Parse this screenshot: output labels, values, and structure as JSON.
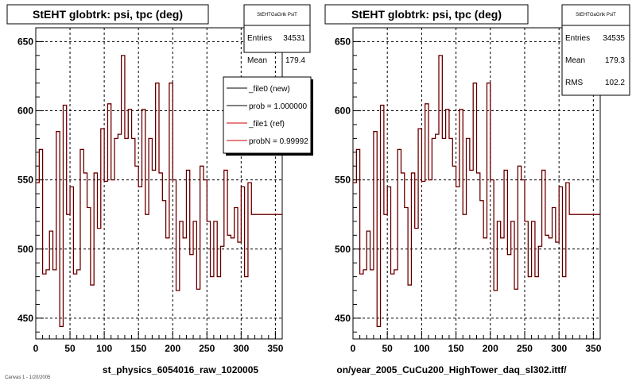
{
  "chart_data": [
    {
      "type": "line",
      "title": "StEHT globtrk: psi, tpc (deg)",
      "footer": "st_physics_6054016_raw_1020005",
      "xlim": [
        0,
        360
      ],
      "ylim": [
        435,
        660
      ],
      "x_ticks": [
        "0",
        "50",
        "100",
        "150",
        "200",
        "250",
        "300",
        "350"
      ],
      "y_ticks": [
        "450",
        "500",
        "550",
        "600",
        "650"
      ],
      "grid": true,
      "stats": {
        "name": "StEHTGaGrtk PsiT",
        "rows": [
          {
            "label": "Entries",
            "value": "34531"
          },
          {
            "label": "Mean",
            "value": "179.4"
          }
        ]
      },
      "legend": [
        {
          "label": "_file0 (new)",
          "color": "#000000"
        },
        {
          "label": "prob = 1.000000",
          "color": "#000000"
        },
        {
          "label": "_file1 (ref)",
          "color": "#cc0000"
        },
        {
          "label": "probN = 0.99992",
          "color": "#cc0000"
        }
      ],
      "series": [
        {
          "color": "#cc0000",
          "bin_width": 5,
          "values": [
            548,
            572,
            482,
            485,
            513,
            485,
            585,
            444,
            604,
            525,
            545,
            482,
            485,
            572,
            555,
            530,
            474,
            555,
            515,
            587,
            549,
            605,
            550,
            580,
            583,
            640,
            580,
            601,
            580,
            560,
            545,
            601,
            525,
            580,
            557,
            620,
            555,
            535,
            508,
            620,
            550,
            470,
            520,
            508,
            557,
            496,
            520,
            471,
            560,
            550,
            520,
            480,
            520,
            480,
            502,
            557,
            510,
            508,
            530,
            505,
            545,
            480,
            548,
            525,
            525,
            525,
            525,
            525,
            525,
            525,
            525,
            525
          ]
        },
        {
          "color": "#000000",
          "bin_width": 5,
          "values": [
            548,
            572,
            482,
            485,
            513,
            485,
            585,
            444,
            604,
            525,
            545,
            482,
            485,
            572,
            555,
            530,
            474,
            555,
            515,
            587,
            549,
            605,
            550,
            580,
            583,
            640,
            580,
            601,
            580,
            560,
            545,
            601,
            525,
            580,
            557,
            620,
            555,
            535,
            508,
            620,
            550,
            470,
            520,
            508,
            557,
            496,
            520,
            471,
            560,
            550,
            520,
            480,
            520,
            480,
            502,
            557,
            510,
            508,
            530,
            505,
            545,
            480,
            548,
            525,
            525,
            525,
            525,
            525,
            525,
            525,
            525,
            525
          ]
        }
      ]
    },
    {
      "type": "line",
      "title": "StEHT globtrk: psi, tpc (deg)",
      "footer": "on/year_2005_CuCu200_HighTower_daq_sl302.ittf/",
      "xlim": [
        0,
        360
      ],
      "ylim": [
        435,
        660
      ],
      "x_ticks": [
        "0",
        "50",
        "100",
        "150",
        "200",
        "250",
        "300",
        "350"
      ],
      "y_ticks": [
        "450",
        "500",
        "550",
        "600",
        "650"
      ],
      "grid": true,
      "stats": {
        "name": "StEHTGaGrtk PsiT",
        "rows": [
          {
            "label": "Entries",
            "value": "34535"
          },
          {
            "label": "Mean",
            "value": "179.3"
          },
          {
            "label": "RMS",
            "value": "102.2"
          }
        ]
      },
      "legend": [],
      "series": [
        {
          "color": "#cc0000",
          "bin_width": 5,
          "values": [
            548,
            572,
            482,
            485,
            513,
            485,
            585,
            444,
            604,
            525,
            545,
            482,
            485,
            572,
            555,
            530,
            474,
            555,
            515,
            587,
            549,
            605,
            550,
            580,
            583,
            640,
            580,
            601,
            580,
            560,
            545,
            601,
            525,
            580,
            557,
            620,
            555,
            535,
            508,
            620,
            550,
            470,
            520,
            508,
            557,
            496,
            520,
            471,
            560,
            550,
            520,
            480,
            520,
            480,
            502,
            557,
            510,
            508,
            530,
            505,
            545,
            480,
            548,
            525,
            525,
            525,
            525,
            525,
            525,
            525,
            525,
            525
          ]
        },
        {
          "color": "#000000",
          "bin_width": 5,
          "values": [
            548,
            572,
            482,
            485,
            513,
            485,
            585,
            444,
            604,
            525,
            545,
            482,
            485,
            572,
            555,
            530,
            474,
            555,
            515,
            587,
            549,
            605,
            550,
            580,
            583,
            640,
            580,
            601,
            580,
            560,
            545,
            601,
            525,
            580,
            557,
            620,
            555,
            535,
            508,
            620,
            550,
            470,
            520,
            508,
            557,
            496,
            520,
            471,
            560,
            550,
            520,
            480,
            520,
            480,
            502,
            557,
            510,
            508,
            530,
            505,
            545,
            480,
            548,
            525,
            525,
            525,
            525,
            525,
            525,
            525,
            525,
            525
          ]
        }
      ]
    }
  ],
  "footnote": "Canvas 1 - 1/20/2005"
}
